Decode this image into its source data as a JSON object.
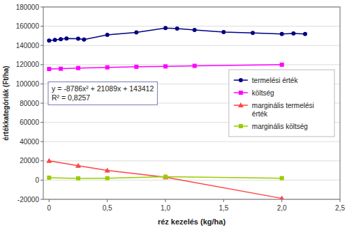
{
  "chart_data": {
    "type": "line",
    "xlabel": "réz kezelés (kg/ha)",
    "ylabel": "értékkategóriák (Ft/ha)",
    "xlim": [
      -0.05,
      2.5
    ],
    "ylim": [
      -20000,
      180000
    ],
    "xticks": [
      0,
      {
        "value": 0.5,
        "label": "0,5"
      },
      {
        "value": 1.0,
        "label": "1,0"
      },
      {
        "value": 1.5,
        "label": "1,5"
      },
      {
        "value": 2.0,
        "label": "2,0"
      },
      {
        "value": 2.5,
        "label": "2,5"
      }
    ],
    "yticks": [
      -20000,
      0,
      20000,
      40000,
      60000,
      80000,
      100000,
      120000,
      140000,
      160000,
      180000
    ],
    "grid": "y",
    "legend": "center right",
    "annotations": [
      "y = -8786x² + 21089x + 143412\nR² = 0,8257"
    ],
    "series": [
      {
        "name": "termelési érték",
        "color": "#000080",
        "marker": "circle",
        "x": [
          0,
          0.05,
          0.1,
          0.15,
          0.25,
          0.3,
          0.5,
          0.75,
          1.0,
          1.1,
          1.25,
          1.5,
          1.75,
          2.0,
          2.1,
          2.2
        ],
        "values": [
          145000,
          145800,
          146500,
          147200,
          147000,
          146200,
          151000,
          153500,
          158000,
          157500,
          156000,
          154000,
          153000,
          152000,
          152500,
          152000
        ]
      },
      {
        "name": "költség",
        "color": "#FF00FF",
        "marker": "square",
        "x": [
          0,
          0.1,
          0.25,
          0.5,
          0.75,
          1.0,
          1.25,
          2.0
        ],
        "values": [
          115500,
          115800,
          116500,
          117200,
          117800,
          118200,
          118800,
          120000
        ]
      },
      {
        "name": "marginális termelési\nérték",
        "color": "#FF4444",
        "marker": "triangle",
        "x": [
          0,
          0.25,
          0.5,
          1.0,
          2.0
        ],
        "values": [
          20000,
          15000,
          10000,
          3000,
          -19000
        ]
      },
      {
        "name": "marginális költség",
        "color": "#99CC00",
        "marker": "square",
        "x": [
          0,
          0.25,
          0.5,
          1.0,
          2.0
        ],
        "values": [
          2500,
          1800,
          2000,
          3500,
          2000
        ]
      }
    ]
  }
}
